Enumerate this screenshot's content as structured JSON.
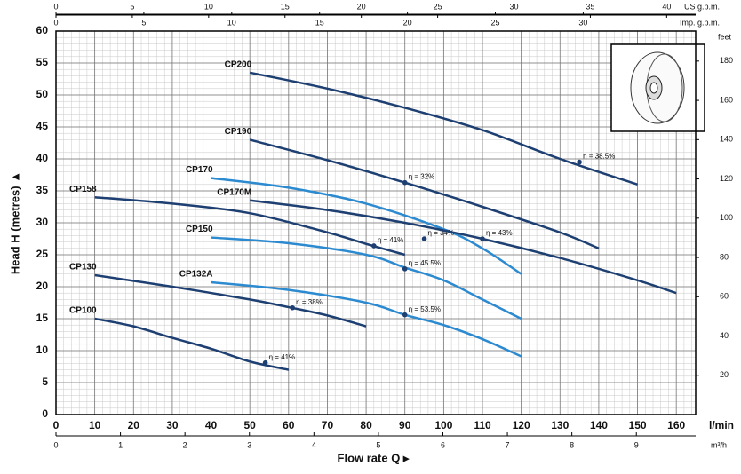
{
  "chart_data": {
    "type": "line",
    "y_label": "Head H (metres) ▲",
    "x_label": "Flow rate Q ▸",
    "x_unit": "l/min",
    "xlim": [
      0,
      165
    ],
    "xticks": [
      0,
      10,
      20,
      30,
      40,
      50,
      60,
      70,
      80,
      90,
      100,
      110,
      120,
      130,
      140,
      150,
      160
    ],
    "ylim": [
      0,
      60
    ],
    "yticks": [
      0,
      5,
      10,
      15,
      20,
      25,
      30,
      35,
      40,
      45,
      50,
      55,
      60
    ],
    "x2_label": "US g.p.m.",
    "x2lim": [
      0,
      41.9
    ],
    "x2ticks": [
      0,
      5,
      10,
      15,
      20,
      25,
      30,
      35,
      40
    ],
    "x3_label": "Imp. g.p.m.",
    "x3lim": [
      0,
      36.4
    ],
    "x3ticks": [
      0,
      5,
      10,
      15,
      20,
      25,
      30
    ],
    "x4_label": "m³/h",
    "x4lim": [
      0,
      9.92
    ],
    "x4ticks": [
      0,
      1,
      2,
      3,
      4,
      5,
      6,
      7,
      8,
      9
    ],
    "y2_label": "feet",
    "y2lim": [
      0,
      195.3
    ],
    "y2ticks": [
      20,
      40,
      60,
      80,
      100,
      120,
      140,
      160,
      180
    ],
    "grid": true,
    "series": [
      {
        "name": "CP200",
        "color": "#1d3f72",
        "x": [
          50,
          70,
          90,
          110,
          130,
          150
        ],
        "values": [
          53.5,
          51,
          48,
          44.5,
          40,
          36
        ],
        "annotation": {
          "x": 135,
          "y": 39.5,
          "label": "η = 38.5%"
        }
      },
      {
        "name": "CP190",
        "color": "#1d3f72",
        "x": [
          50,
          70,
          90,
          110,
          130,
          140
        ],
        "values": [
          43,
          39.8,
          36.3,
          32.5,
          28.5,
          26
        ],
        "annotation": {
          "x": 90,
          "y": 36.3,
          "label": "η = 32%"
        }
      },
      {
        "name": "CP170",
        "color": "#2b8ad0",
        "x": [
          40,
          60,
          80,
          100,
          110,
          120
        ],
        "values": [
          37,
          35.5,
          33,
          29,
          26,
          22
        ],
        "annotation": {
          "x": 95,
          "y": 27.5,
          "label": "η = 34%"
        }
      },
      {
        "name": "CP170M",
        "color": "#1d3f72",
        "x": [
          50,
          70,
          90,
          110,
          130,
          150,
          160
        ],
        "values": [
          33.5,
          32,
          30,
          27.5,
          24.5,
          21,
          19
        ],
        "annotation": {
          "x": 110,
          "y": 27.5,
          "label": "η = 43%"
        }
      },
      {
        "name": "CP158",
        "color": "#1d3f72",
        "x": [
          10,
          30,
          50,
          70,
          80,
          90
        ],
        "values": [
          34,
          33,
          31.5,
          28.5,
          26.7,
          25
        ],
        "annotation": {
          "x": 82,
          "y": 26.4,
          "label": "η = 41%"
        }
      },
      {
        "name": "CP150",
        "color": "#2b8ad0",
        "x": [
          40,
          60,
          80,
          90,
          100,
          110,
          120
        ],
        "values": [
          27.7,
          26.8,
          25,
          23,
          21,
          18,
          15
        ],
        "annotation": {
          "x": 90,
          "y": 22.8,
          "label": "η = 45.5%"
        }
      },
      {
        "name": "CP130",
        "color": "#1d3f72",
        "x": [
          10,
          30,
          50,
          60,
          70,
          80
        ],
        "values": [
          21.8,
          20,
          18,
          16.8,
          15.5,
          13.8
        ],
        "annotation": {
          "x": 61,
          "y": 16.7,
          "label": "η = 38%"
        }
      },
      {
        "name": "CP132A",
        "color": "#2b8ad0",
        "x": [
          40,
          60,
          80,
          90,
          100,
          110,
          120
        ],
        "values": [
          20.7,
          19.5,
          17.5,
          15.6,
          14,
          11.8,
          9.1
        ],
        "annotation": {
          "x": 90,
          "y": 15.6,
          "label": "η = 53.5%"
        }
      },
      {
        "name": "CP100",
        "color": "#1d3f72",
        "x": [
          10,
          20,
          30,
          40,
          50,
          60
        ],
        "values": [
          15,
          13.8,
          12,
          10.3,
          8.3,
          7
        ],
        "annotation": {
          "x": 54,
          "y": 8.1,
          "label": "η = 41%"
        }
      }
    ]
  }
}
